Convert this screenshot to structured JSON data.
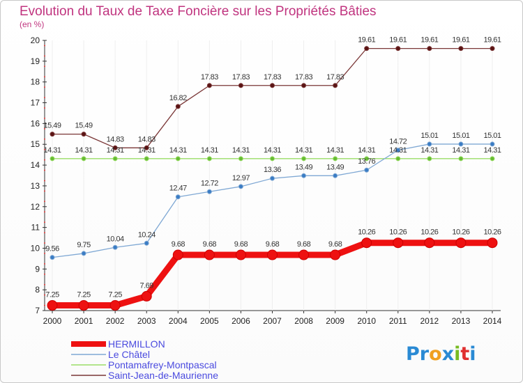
{
  "chart_data": {
    "type": "line",
    "title": "Evolution du Taux de Taxe Foncière sur les Propriétés Bâties",
    "subtitle": "(en %)",
    "xlabel": "",
    "ylabel": "",
    "ylim": [
      7,
      20
    ],
    "y_ticks": [
      "7",
      "8",
      "9",
      "10",
      "11",
      "12",
      "13",
      "14",
      "15",
      "16",
      "17",
      "18",
      "19",
      "20"
    ],
    "categories": [
      "2000",
      "2001",
      "2002",
      "2003",
      "2004",
      "2005",
      "2006",
      "2007",
      "2008",
      "2009",
      "2010",
      "2011",
      "2012",
      "2013",
      "2014"
    ],
    "series": [
      {
        "name": "HERMILLON",
        "color": "#ee1111",
        "marker_color": "#cc0000",
        "values": [
          7.25,
          7.25,
          7.25,
          7.69,
          9.68,
          9.68,
          9.68,
          9.68,
          9.68,
          9.68,
          10.26,
          10.26,
          10.26,
          10.26,
          10.26
        ],
        "labels": [
          "7.25",
          "7.25",
          "7.25",
          "7.69",
          "9.68",
          "9.68",
          "9.68",
          "9.68",
          "9.68",
          "9.68",
          "10.26",
          "10.26",
          "10.26",
          "10.26",
          "10.26"
        ]
      },
      {
        "name": "Le Châtel",
        "color": "#7fa8d4",
        "marker_color": "#3a7cc4",
        "values": [
          9.56,
          9.75,
          10.04,
          10.24,
          12.47,
          12.72,
          12.97,
          13.36,
          13.49,
          13.49,
          13.76,
          14.72,
          15.01,
          15.01,
          15.01
        ],
        "labels": [
          "9.56",
          "9.75",
          "10.04",
          "10.24",
          "12.47",
          "12.72",
          "12.97",
          "13.36",
          "13.49",
          "13.49",
          "13.76",
          "14.72",
          "15.01",
          "15.01",
          "15.01"
        ]
      },
      {
        "name": "Pontamafrey-Montpascal",
        "color": "#99dd66",
        "marker_color": "#66bb33",
        "values": [
          14.31,
          14.31,
          14.31,
          14.31,
          14.31,
          14.31,
          14.31,
          14.31,
          14.31,
          14.31,
          14.31,
          14.31,
          14.31,
          14.31,
          14.31
        ],
        "labels": [
          "14.31",
          "14.31",
          "14.31",
          "14.31",
          "14.31",
          "14.31",
          "14.31",
          "14.31",
          "14.31",
          "14.31",
          "14.31",
          "14.31",
          "14.31",
          "14.31",
          "14.31"
        ]
      },
      {
        "name": "Saint-Jean-de-Maurienne",
        "color": "#7a3636",
        "marker_color": "#5a1414",
        "values": [
          15.49,
          15.49,
          14.83,
          14.83,
          16.82,
          17.83,
          17.83,
          17.83,
          17.83,
          17.83,
          19.61,
          19.61,
          19.61,
          19.61,
          19.61
        ],
        "labels": [
          "15.49",
          "15.49",
          "14.83",
          "14.83",
          "16.82",
          "17.83",
          "17.83",
          "17.83",
          "17.83",
          "17.83",
          "19.61",
          "19.61",
          "19.61",
          "19.61",
          "19.61"
        ]
      }
    ],
    "legend_position": "bottom-left"
  },
  "logo": {
    "letters": [
      "P",
      "r",
      "o",
      "x",
      "i",
      "t",
      "i"
    ],
    "colors": [
      "#2a8ad4",
      "#2a8ad4",
      "#f0a020",
      "#2a8ad4",
      "#77bb22",
      "#e03030",
      "#2a8ad4"
    ]
  }
}
